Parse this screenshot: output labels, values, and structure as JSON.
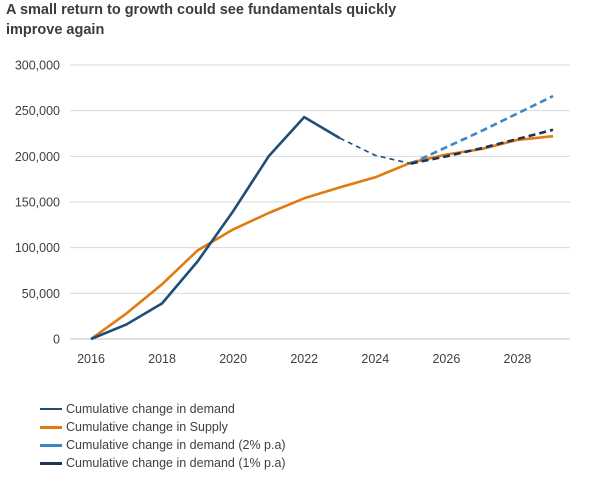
{
  "chart_data": {
    "type": "line",
    "title": "A small return to growth could see fundamentals quickly improve again",
    "xlabel": "",
    "ylabel": "",
    "xlim": [
      2016,
      2029
    ],
    "ylim": [
      0,
      300000
    ],
    "x_ticks": [
      2016,
      2018,
      2020,
      2022,
      2024,
      2026,
      2028
    ],
    "y_ticks": [
      0,
      50000,
      100000,
      150000,
      200000,
      250000,
      300000
    ],
    "y_tick_labels": [
      "0",
      "50,000",
      "100,000",
      "150,000",
      "200,000",
      "250,000",
      "300,000"
    ],
    "grid": "horizontal",
    "legend_position": "bottom",
    "series": [
      {
        "name": "Cumulative change in demand",
        "color": "#1f4e79",
        "style": "solid",
        "x": [
          2016,
          2017,
          2018,
          2019,
          2020,
          2021,
          2022,
          2023
        ],
        "y": [
          0,
          16000,
          39000,
          85000,
          140000,
          200000,
          243000,
          220000
        ]
      },
      {
        "name": "",
        "color": "#1f4e79",
        "style": "dashed-thin",
        "legend": false,
        "x": [
          2023,
          2024,
          2025
        ],
        "y": [
          220000,
          201000,
          192000
        ]
      },
      {
        "name": "Cumulative change in Supply",
        "color": "#e07b12",
        "style": "solid",
        "x": [
          2016,
          2017,
          2018,
          2019,
          2020,
          2021,
          2022,
          2023,
          2024,
          2025,
          2026,
          2027,
          2028,
          2029
        ],
        "y": [
          0,
          28000,
          60000,
          97000,
          120000,
          138000,
          154000,
          166000,
          177000,
          193000,
          202000,
          208000,
          218000,
          222000
        ]
      },
      {
        "name": "Cumulative change in demand (2% p.a)",
        "color": "#3a87c8",
        "style": "dashed",
        "x": [
          2025,
          2026,
          2027,
          2028,
          2029
        ],
        "y": [
          192000,
          210000,
          228000,
          247000,
          266000
        ]
      },
      {
        "name": "Cumulative change in demand (1% p.a)",
        "color": "#1c3556",
        "style": "dashed",
        "x": [
          2025,
          2026,
          2027,
          2028,
          2029
        ],
        "y": [
          192000,
          200000,
          209000,
          219000,
          229000
        ]
      }
    ]
  }
}
